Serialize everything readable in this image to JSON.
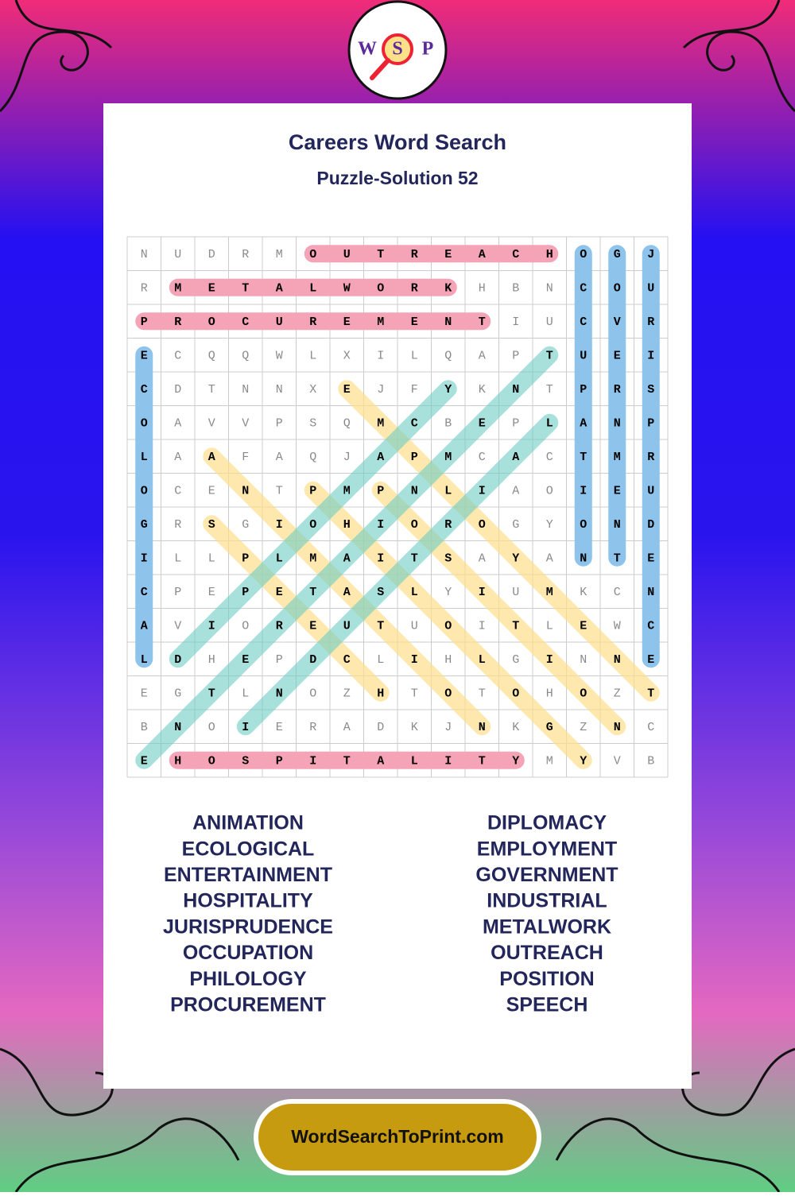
{
  "header": {
    "logo": [
      "W",
      "S",
      "P"
    ],
    "title": "Careers Word Search",
    "subtitle": "Puzzle-Solution 52"
  },
  "grid": {
    "rows": [
      [
        "N",
        "U",
        "D",
        "R",
        "M",
        "O",
        "U",
        "T",
        "R",
        "E",
        "A",
        "C",
        "H",
        "O",
        "G",
        "J"
      ],
      [
        "R",
        "M",
        "E",
        "T",
        "A",
        "L",
        "W",
        "O",
        "R",
        "K",
        "H",
        "B",
        "N",
        "C",
        "O",
        "U"
      ],
      [
        "P",
        "R",
        "O",
        "C",
        "U",
        "R",
        "E",
        "M",
        "E",
        "N",
        "T",
        "I",
        "U",
        "C",
        "V",
        "R"
      ],
      [
        "E",
        "C",
        "Q",
        "Q",
        "W",
        "L",
        "X",
        "I",
        "L",
        "Q",
        "A",
        "P",
        "T",
        "U",
        "E",
        "I"
      ],
      [
        "C",
        "D",
        "T",
        "N",
        "N",
        "X",
        "E",
        "J",
        "F",
        "Y",
        "K",
        "N",
        "T",
        "P",
        "R",
        "S"
      ],
      [
        "O",
        "A",
        "V",
        "V",
        "P",
        "S",
        "Q",
        "M",
        "C",
        "B",
        "E",
        "P",
        "L",
        "A",
        "N",
        "P"
      ],
      [
        "L",
        "A",
        "A",
        "F",
        "A",
        "Q",
        "J",
        "A",
        "P",
        "M",
        "C",
        "A",
        "C",
        "T",
        "M",
        "R"
      ],
      [
        "O",
        "C",
        "E",
        "N",
        "T",
        "P",
        "M",
        "P",
        "N",
        "L",
        "I",
        "A",
        "O",
        "I",
        "E",
        "U"
      ],
      [
        "G",
        "R",
        "S",
        "G",
        "I",
        "O",
        "H",
        "I",
        "O",
        "R",
        "O",
        "G",
        "Y",
        "O",
        "N",
        "D"
      ],
      [
        "I",
        "L",
        "L",
        "P",
        "L",
        "M",
        "A",
        "I",
        "T",
        "S",
        "A",
        "Y",
        "A",
        "N",
        "T",
        "E"
      ],
      [
        "C",
        "P",
        "E",
        "P",
        "E",
        "T",
        "A",
        "S",
        "L",
        "Y",
        "I",
        "U",
        "M",
        "K",
        "C",
        "N"
      ],
      [
        "A",
        "V",
        "I",
        "O",
        "R",
        "E",
        "U",
        "T",
        "U",
        "O",
        "I",
        "T",
        "L",
        "E",
        "W",
        "C"
      ],
      [
        "L",
        "D",
        "H",
        "E",
        "P",
        "D",
        "C",
        "L",
        "I",
        "H",
        "L",
        "G",
        "I",
        "N",
        "N",
        "E"
      ],
      [
        "E",
        "G",
        "T",
        "L",
        "N",
        "O",
        "Z",
        "H",
        "T",
        "O",
        "T",
        "O",
        "H",
        "O",
        "Z",
        "T"
      ],
      [
        "B",
        "N",
        "O",
        "I",
        "E",
        "R",
        "A",
        "D",
        "K",
        "J",
        "N",
        "K",
        "G",
        "Z",
        "N",
        "C"
      ],
      [
        "E",
        "H",
        "O",
        "S",
        "P",
        "I",
        "T",
        "A",
        "L",
        "I",
        "T",
        "Y",
        "M",
        "Y",
        "V",
        "B"
      ]
    ]
  },
  "words": {
    "left": [
      "ANIMATION",
      "ECOLOGICAL",
      "ENTERTAINMENT",
      "HOSPITALITY",
      "JURISPRUDENCE",
      "OCCUPATION",
      "PHILOLOGY",
      "PROCUREMENT"
    ],
    "right": [
      "DIPLOMACY",
      "EMPLOYMENT",
      "GOVERNMENT",
      "INDUSTRIAL",
      "METALWORK",
      "OUTREACH",
      "POSITION",
      "SPEECH"
    ]
  },
  "footer": {
    "site": "WordSearchToPrint.com"
  }
}
